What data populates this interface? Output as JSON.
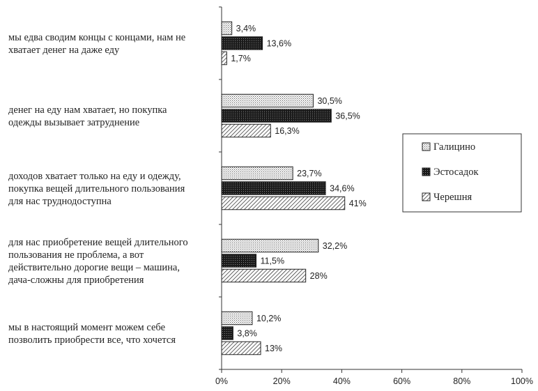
{
  "chart_data": {
    "type": "bar",
    "orientation": "horizontal",
    "categories": [
      [
        "мы едва сводим концы с концами, нам не",
        "хватает денег на даже еду"
      ],
      [
        "денег на еду нам хватает, но покупка",
        "одежды вызывает затруднение"
      ],
      [
        "доходов хватает только на еду и одежду,",
        "покупка вещей длительного пользования",
        "для нас труднодоступна"
      ],
      [
        "для нас приобретение вещей длительного",
        "пользования не проблема, а вот",
        "действительно дорогие вещи – машина,",
        "дача-сложны для приобретения"
      ],
      [
        "мы в настоящий момент можем себе",
        "позволить приобрести все, что хочется"
      ]
    ],
    "series": [
      {
        "name": "Галицино",
        "values": [
          3.4,
          30.5,
          23.7,
          32.2,
          10.2
        ],
        "labels": [
          "3,4%",
          "30,5%",
          "23,7%",
          "32,2%",
          "10,2%"
        ],
        "pattern": "dots-light"
      },
      {
        "name": "Эстосадок",
        "values": [
          13.6,
          36.5,
          34.6,
          11.5,
          3.8
        ],
        "labels": [
          "13,6%",
          "36,5%",
          "34,6%",
          "11,5%",
          "3,8%"
        ],
        "pattern": "dots-dark"
      },
      {
        "name": "Черешня",
        "values": [
          1.7,
          16.3,
          41,
          28,
          13
        ],
        "labels": [
          "1,7%",
          "16,3%",
          "41%",
          "28%",
          "13%"
        ],
        "pattern": "hatch"
      }
    ],
    "xlim": [
      0,
      100
    ],
    "xticks": [
      "0%",
      "20%",
      "40%",
      "60%",
      "80%",
      "100%"
    ],
    "legend_position": "right",
    "grid": false
  }
}
